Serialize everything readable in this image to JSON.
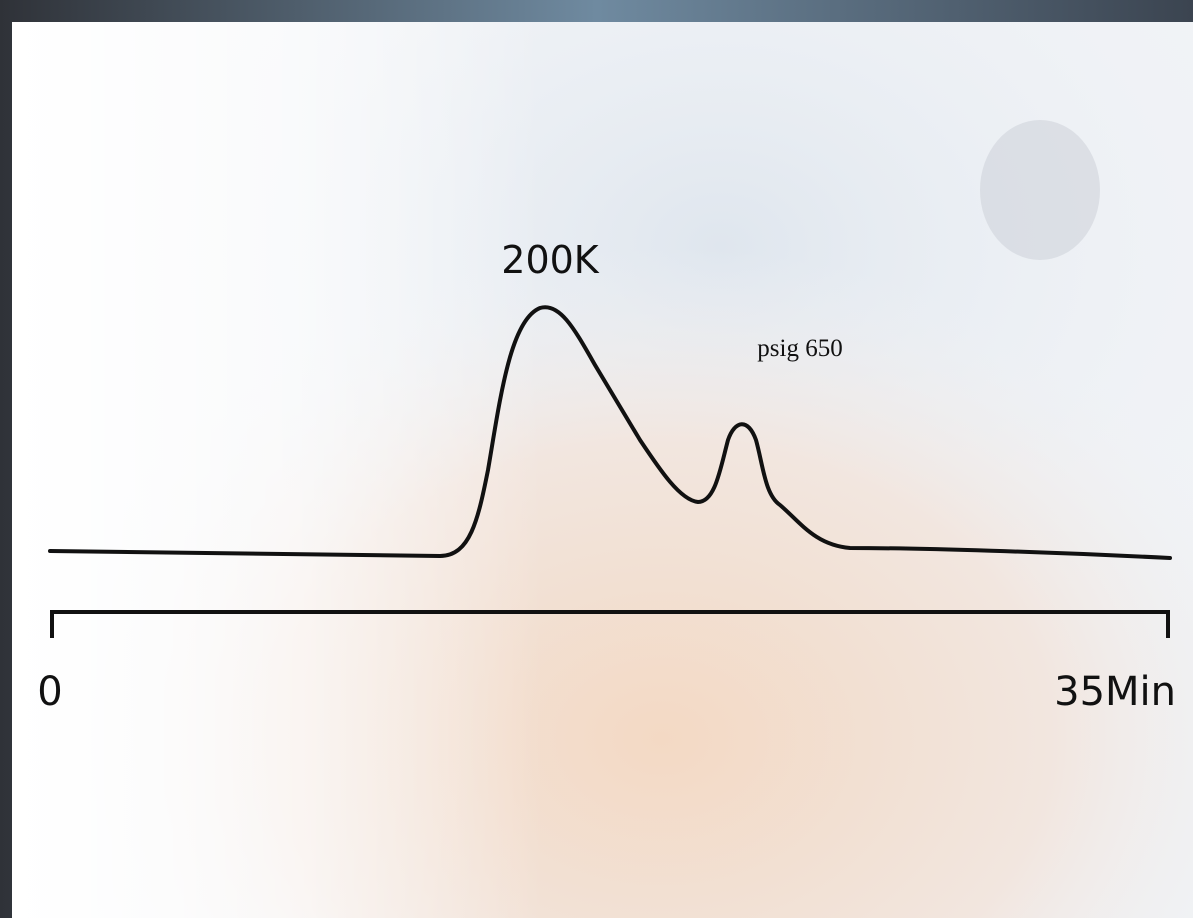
{
  "annotations": {
    "main_peak": "200K",
    "minor_peak": "psig 650"
  },
  "axis": {
    "start": "0",
    "end": "35Min"
  }
}
